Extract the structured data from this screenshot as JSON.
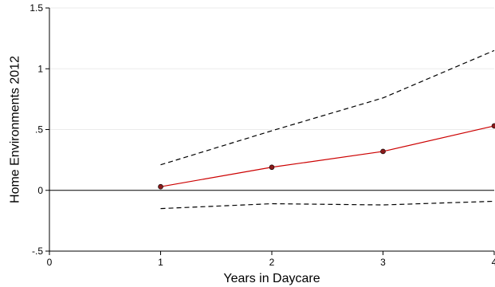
{
  "chart_data": {
    "type": "line",
    "title": "",
    "xlabel": "Years in Daycare",
    "ylabel": "Home Environments 2012",
    "xlim": [
      0,
      4
    ],
    "ylim": [
      -0.5,
      1.5
    ],
    "x_ticks": [
      0,
      1,
      2,
      3,
      4
    ],
    "x_tick_labels": [
      "0",
      "1",
      "2",
      "3",
      "4"
    ],
    "y_ticks": [
      -0.5,
      0,
      0.5,
      1,
      1.5
    ],
    "y_tick_labels": [
      "-.5",
      "0",
      ".5",
      "1",
      "1.5"
    ],
    "grid": true,
    "reference_line_y": 0,
    "series": [
      {
        "role": "estimate",
        "x": [
          1,
          2,
          3,
          4
        ],
        "y": [
          0.03,
          0.19,
          0.32,
          0.53
        ],
        "color": "#cc0000",
        "marker_color": "#8b1a1a"
      },
      {
        "role": "upper-ci",
        "x": [
          1,
          2,
          3,
          4
        ],
        "y": [
          0.21,
          0.49,
          0.76,
          1.15
        ],
        "color": "#000000",
        "dashed": true
      },
      {
        "role": "lower-ci",
        "x": [
          1,
          2,
          3,
          4
        ],
        "y": [
          -0.15,
          -0.11,
          -0.12,
          -0.09
        ],
        "color": "#000000",
        "dashed": true
      }
    ]
  }
}
